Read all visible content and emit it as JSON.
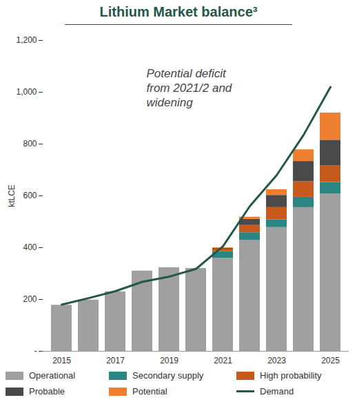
{
  "chart_data": {
    "type": "bar",
    "title": "Lithium Market balance³",
    "annotation": "Potential deficit\nfrom 2021/2 and\nwidening",
    "y_label": "ktLCE",
    "stacked": true,
    "legend": "bottom",
    "categories": [
      "2015",
      null,
      "2017",
      null,
      "2019",
      null,
      "2021",
      null,
      "2023",
      null,
      "2025"
    ],
    "ylim": [
      0,
      1200
    ],
    "yticks": [
      {
        "value": 0,
        "label": "-"
      },
      200,
      400,
      600,
      800,
      {
        "value": 1000,
        "label": "1,000"
      },
      {
        "value": 1200,
        "label": "1,200"
      }
    ],
    "series": [
      {
        "name": "Operational",
        "color": "#a0a0a0",
        "values": [
          178,
          198,
          230,
          310,
          323,
          320,
          360,
          428,
          478,
          555,
          607
        ]
      },
      {
        "name": "Secondary supply",
        "color": "#2b8583",
        "values": [
          0,
          0,
          0,
          0,
          0,
          0,
          25,
          30,
          30,
          40,
          45
        ]
      },
      {
        "name": "High probability",
        "color": "#c65a1c",
        "values": [
          0,
          0,
          0,
          0,
          0,
          0,
          10,
          28,
          47,
          60,
          65
        ]
      },
      {
        "name": "Probable",
        "color": "#4a4a4a",
        "values": [
          0,
          0,
          0,
          0,
          0,
          0,
          3,
          24,
          47,
          78,
          98
        ]
      },
      {
        "name": "Potential",
        "color": "#ef7f30",
        "values": [
          0,
          0,
          0,
          0,
          0,
          0,
          2,
          8,
          22,
          45,
          105
        ]
      },
      {
        "name": "Demand",
        "type": "line",
        "color": "#24574a",
        "values": [
          180,
          205,
          232,
          268,
          288,
          318,
          405,
          560,
          680,
          835,
          1020
        ]
      }
    ]
  }
}
